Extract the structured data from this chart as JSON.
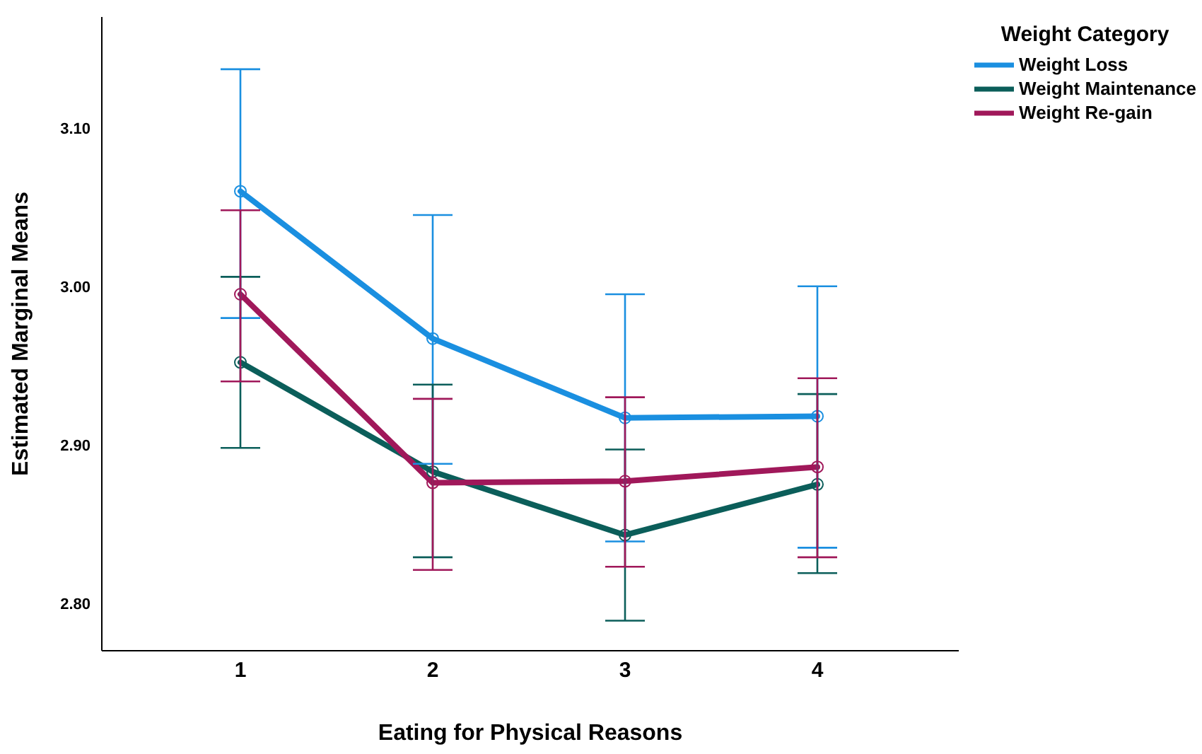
{
  "chart_data": {
    "type": "line",
    "xlabel": "Eating for Physical Reasons",
    "ylabel": "Estimated Marginal Means",
    "legend_title": "Weight Category",
    "categories": [
      "1",
      "2",
      "3",
      "4"
    ],
    "series": [
      {
        "name": "Weight Loss",
        "color": "#1a8fe0",
        "values": [
          3.06,
          2.967,
          2.917,
          2.918
        ],
        "errors": [
          [
            2.98,
            3.137
          ],
          [
            2.888,
            3.045
          ],
          [
            2.839,
            2.995
          ],
          [
            2.835,
            3.0
          ]
        ]
      },
      {
        "name": "Weight Maintenance",
        "color": "#0b5e5a",
        "values": [
          2.952,
          2.883,
          2.843,
          2.875
        ],
        "errors": [
          [
            2.898,
            3.006
          ],
          [
            2.829,
            2.938
          ],
          [
            2.789,
            2.897
          ],
          [
            2.819,
            2.932
          ]
        ]
      },
      {
        "name": "Weight Re-gain",
        "color": "#a0185a",
        "values": [
          2.995,
          2.876,
          2.877,
          2.886
        ],
        "errors": [
          [
            2.94,
            3.048
          ],
          [
            2.821,
            2.929
          ],
          [
            2.823,
            2.93
          ],
          [
            2.829,
            2.942
          ]
        ]
      }
    ],
    "ylim": [
      2.77,
      3.17
    ],
    "yticks": [
      {
        "value": 2.8,
        "label": "2.80"
      },
      {
        "value": 2.9,
        "label": "2.90"
      },
      {
        "value": 3.0,
        "label": "3.00"
      },
      {
        "value": 3.1,
        "label": "3.10"
      }
    ],
    "grid": false,
    "legend": "top right",
    "marker": "circle",
    "line_style": "solid"
  }
}
